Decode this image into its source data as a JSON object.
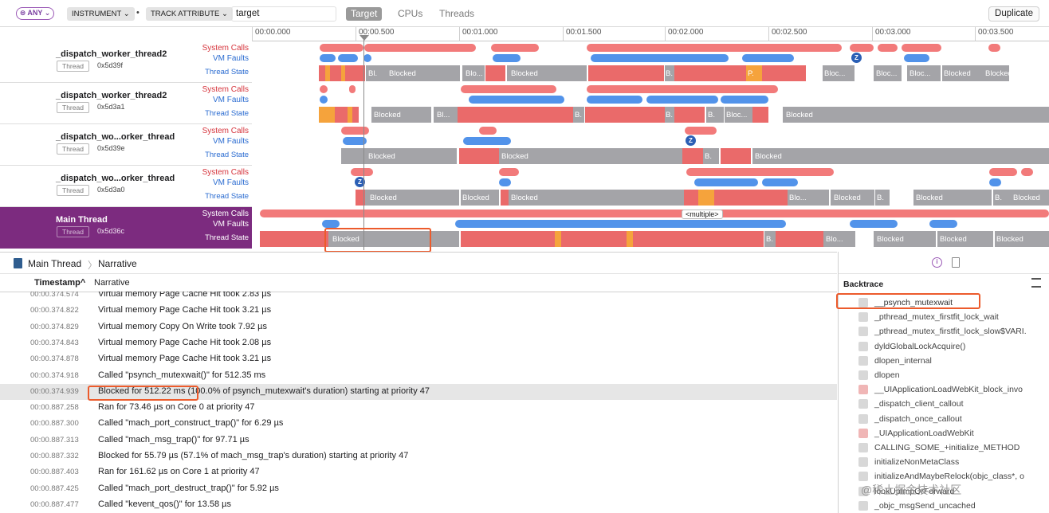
{
  "filter": {
    "any": "⊜ ANY ⌄",
    "instrument": "INSTRUMENT ⌄",
    "separator": "•",
    "track_attr": "TRACK ATTRIBUTE ⌄",
    "text": "target"
  },
  "scope": {
    "target": "Target",
    "cpus": "CPUs",
    "threads": "Threads"
  },
  "duplicate": "Duplicate",
  "ruler": [
    "00:00.000",
    "00:00.500",
    "00:01.000",
    "00:01.500",
    "00:02.000",
    "00:02.500",
    "00:03.000",
    "00:03.500"
  ],
  "groups": [
    {
      "name": "_dispatch_worker_thread2",
      "badge": "Thread",
      "id": "0x5d39f"
    },
    {
      "name": "_dispatch_worker_thread2",
      "badge": "Thread",
      "id": "0x5d3a1"
    },
    {
      "name": "_dispatch_wo...orker_thread",
      "badge": "Thread",
      "id": "0x5d39e"
    },
    {
      "name": "_dispatch_wo...orker_thread",
      "badge": "Thread",
      "id": "0x5d3a0"
    },
    {
      "name": "Main Thread",
      "badge": "Thread",
      "id": "0x5d36c"
    }
  ],
  "track_labels": {
    "sc": "System Calls",
    "vm": "VM Faults",
    "ts": "Thread State"
  },
  "state_text": {
    "blocked": "Blocked",
    "bl": "Bl...",
    "b": "B.",
    "blo": "Blo...",
    "bloc": "Bloc...",
    "blk": "Bl.",
    "p": "P.",
    "multiple": "<multiple>",
    "z": "Z"
  },
  "breadcrumb": {
    "root": "Main Thread",
    "sep": "〉",
    "leaf": "Narrative"
  },
  "columns": {
    "timestamp": "Timestamp^",
    "narrative": "Narrative"
  },
  "narrative": [
    {
      "ts": "00:00.374.574",
      "text": "Virtual memory Page Cache Hit took 2.83 µs"
    },
    {
      "ts": "00:00.374.822",
      "text": "Virtual memory Page Cache Hit took 3.21 µs"
    },
    {
      "ts": "00:00.374.829",
      "text": "Virtual memory Copy On Write took 7.92 µs"
    },
    {
      "ts": "00:00.374.843",
      "text": "Virtual memory Page Cache Hit took 2.08 µs"
    },
    {
      "ts": "00:00.374.878",
      "text": "Virtual memory Page Cache Hit took 3.21 µs"
    },
    {
      "ts": "00:00.374.918",
      "text": "Called \"psynch_mutexwait()\" for 512.35 ms"
    },
    {
      "ts": "00:00.374.939",
      "text": "Blocked for 512.22 ms (100.0% of psynch_mutexwait's duration) starting at priority 47"
    },
    {
      "ts": "00:00.887.258",
      "text": "Ran for 73.46 µs on Core 0 at priority 47"
    },
    {
      "ts": "00:00.887.300",
      "text": "Called \"mach_port_construct_trap()\" for 6.29 µs"
    },
    {
      "ts": "00:00.887.313",
      "text": "Called \"mach_msg_trap()\" for 97.71 µs"
    },
    {
      "ts": "00:00.887.332",
      "text": "Blocked for 55.79 µs (57.1% of mach_msg_trap's duration) starting at priority 47"
    },
    {
      "ts": "00:00.887.403",
      "text": "Ran for 161.62 µs on Core 1 at priority 47"
    },
    {
      "ts": "00:00.887.425",
      "text": "Called \"mach_port_destruct_trap()\" for 5.92 µs"
    },
    {
      "ts": "00:00.887.477",
      "text": "Called \"kevent_qos()\" for 13.58 µs"
    }
  ],
  "inspector": {
    "title": "Backtrace",
    "info_icon": "i",
    "frames": [
      "__psynch_mutexwait",
      "_pthread_mutex_firstfit_lock_wait",
      "_pthread_mutex_firstfit_lock_slow$VARI.",
      "dyldGlobalLockAcquire()",
      "dlopen_internal",
      "dlopen",
      "__UIApplicationLoadWebKit_block_invo",
      "_dispatch_client_callout",
      "_dispatch_once_callout",
      "_UIApplicationLoadWebKit",
      "CALLING_SOME_+initialize_METHOD",
      "initializeNonMetaClass",
      "initializeAndMaybeRelock(objc_class*, o",
      "lookUpImpOrForward",
      "_objc_msgSend_uncached"
    ]
  },
  "watermark": "@稀土掘金技术社区",
  "colors": {
    "sys": "#f27a7a",
    "vm": "#5293ea",
    "blocked": "#a4a4a8",
    "running": "#ea6a6a",
    "preempt": "#f5a33c",
    "main_bg": "#7c2b7f",
    "highlight": "#ec5b2c"
  }
}
